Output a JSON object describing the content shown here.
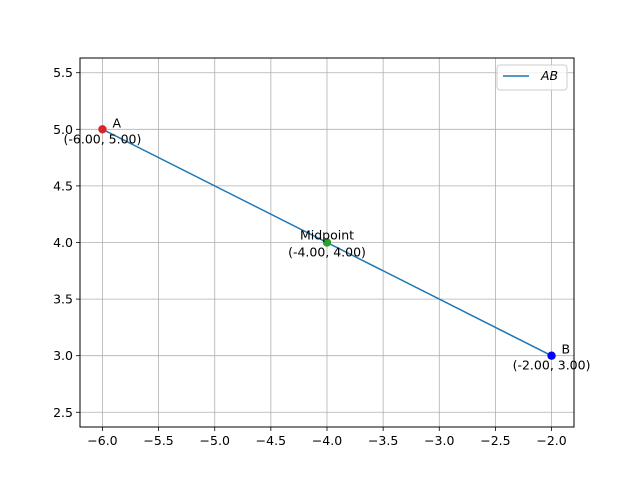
{
  "chart_data": {
    "type": "line",
    "title": "",
    "xlabel": "",
    "ylabel": "",
    "xlim": [
      -6.2,
      -1.8
    ],
    "ylim": [
      2.37,
      5.63
    ],
    "xticks": [
      -6.0,
      -5.5,
      -5.0,
      -4.5,
      -4.0,
      -3.5,
      -3.0,
      -2.5,
      -2.0
    ],
    "xtick_labels": [
      "−6.0",
      "−5.5",
      "−5.0",
      "−4.5",
      "−4.0",
      "−3.5",
      "−3.0",
      "−2.5",
      "−2.0"
    ],
    "yticks": [
      2.5,
      3.0,
      3.5,
      4.0,
      4.5,
      5.0,
      5.5
    ],
    "ytick_labels": [
      "2.5",
      "3.0",
      "3.5",
      "4.0",
      "4.5",
      "5.0",
      "5.5"
    ],
    "grid": true,
    "legend_position": "top-right",
    "series": [
      {
        "name": "AB",
        "x": [
          -6.0,
          -2.0
        ],
        "y": [
          5.0,
          3.0
        ],
        "color": "#1f77b4"
      }
    ],
    "points": [
      {
        "label": "A",
        "coord_label": "(-6.00, 5.00)",
        "x": -6.0,
        "y": 5.0,
        "color": "#d62728",
        "label_side": "right"
      },
      {
        "label": "Midpoint",
        "coord_label": "(-4.00, 4.00)",
        "x": -4.0,
        "y": 4.0,
        "color": "#2ca02c",
        "label_side": "center"
      },
      {
        "label": "B",
        "coord_label": "(-2.00, 3.00)",
        "x": -2.0,
        "y": 3.0,
        "color": "#0000ff",
        "label_side": "right"
      }
    ]
  }
}
